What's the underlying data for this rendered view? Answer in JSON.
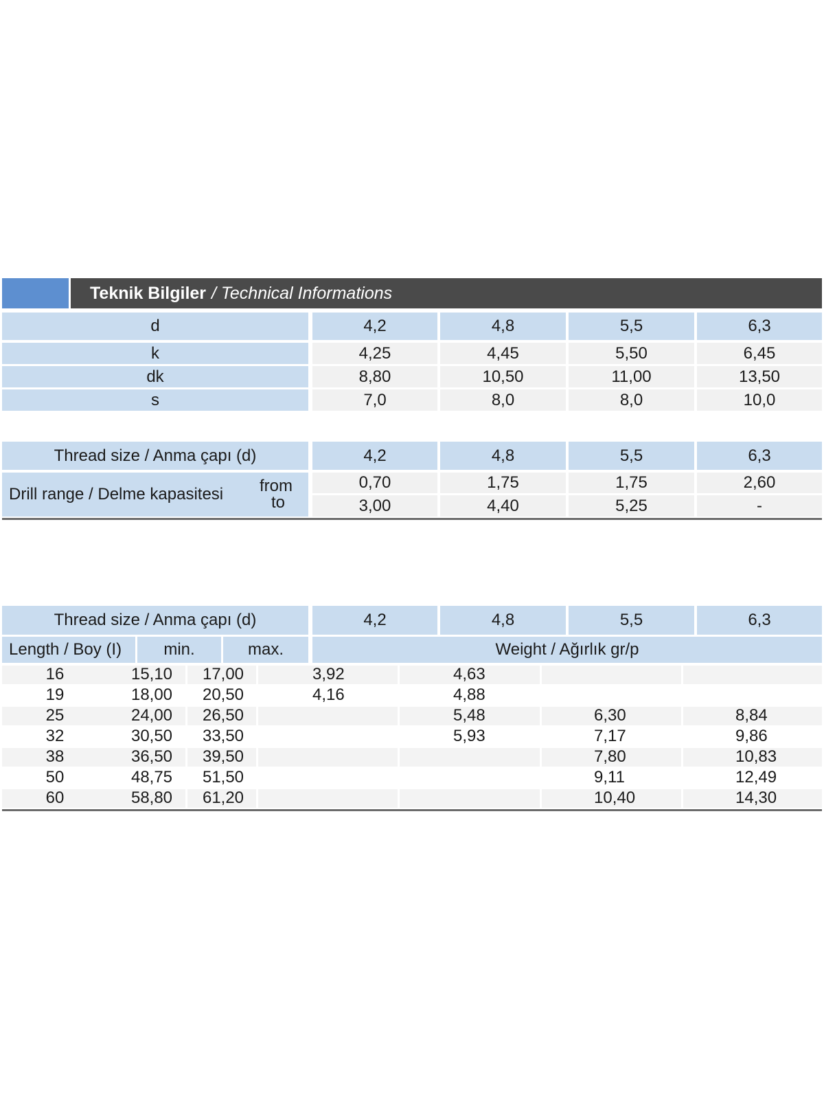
{
  "header": {
    "title_tr": "Teknik Bilgiler",
    "title_en": "/ Technical Informations"
  },
  "dimensions": {
    "columns": [
      "4,2",
      "4,8",
      "5,5",
      "6,3"
    ],
    "rows": [
      {
        "label": "d",
        "values": [
          "4,2",
          "4,8",
          "5,5",
          "6,3"
        ]
      },
      {
        "label": "k",
        "values": [
          "4,25",
          "4,45",
          "5,50",
          "6,45"
        ]
      },
      {
        "label": "dk",
        "values": [
          "8,80",
          "10,50",
          "11,00",
          "13,50"
        ]
      },
      {
        "label": "s",
        "values": [
          "7,0",
          "8,0",
          "8,0",
          "10,0"
        ]
      }
    ]
  },
  "drill": {
    "thread_label": "Thread size / Anma çapı (d)",
    "columns": [
      "4,2",
      "4,8",
      "5,5",
      "6,3"
    ],
    "drill_label": "Drill range / Delme kapasitesi",
    "from_label": "from",
    "to_label": "to",
    "from_values": [
      "0,70",
      "1,75",
      "1,75",
      "2,60"
    ],
    "to_values": [
      "3,00",
      "4,40",
      "5,25",
      "-"
    ]
  },
  "weight": {
    "thread_label": "Thread size / Anma çapı (d)",
    "columns": [
      "4,2",
      "4,8",
      "5,5",
      "6,3"
    ],
    "length_label": "Length / Boy (I)",
    "min_label": "min.",
    "max_label": "max.",
    "weight_label": "Weight / Ağırlık gr/p",
    "rows": [
      {
        "length": "16",
        "min": "15,10",
        "max": "17,00",
        "w": [
          "3,92",
          "4,63",
          "",
          ""
        ]
      },
      {
        "length": "19",
        "min": "18,00",
        "max": "20,50",
        "w": [
          "4,16",
          "4,88",
          "",
          ""
        ]
      },
      {
        "length": "25",
        "min": "24,00",
        "max": "26,50",
        "w": [
          "",
          "5,48",
          "6,30",
          "8,84"
        ]
      },
      {
        "length": "32",
        "min": "30,50",
        "max": "33,50",
        "w": [
          "",
          "5,93",
          "7,17",
          "9,86"
        ]
      },
      {
        "length": "38",
        "min": "36,50",
        "max": "39,50",
        "w": [
          "",
          "",
          "7,80",
          "10,83"
        ]
      },
      {
        "length": "50",
        "min": "48,75",
        "max": "51,50",
        "w": [
          "",
          "",
          "9,11",
          "12,49"
        ]
      },
      {
        "length": "60",
        "min": "58,80",
        "max": "61,20",
        "w": [
          "",
          "",
          "10,40",
          "14,30"
        ]
      }
    ]
  }
}
